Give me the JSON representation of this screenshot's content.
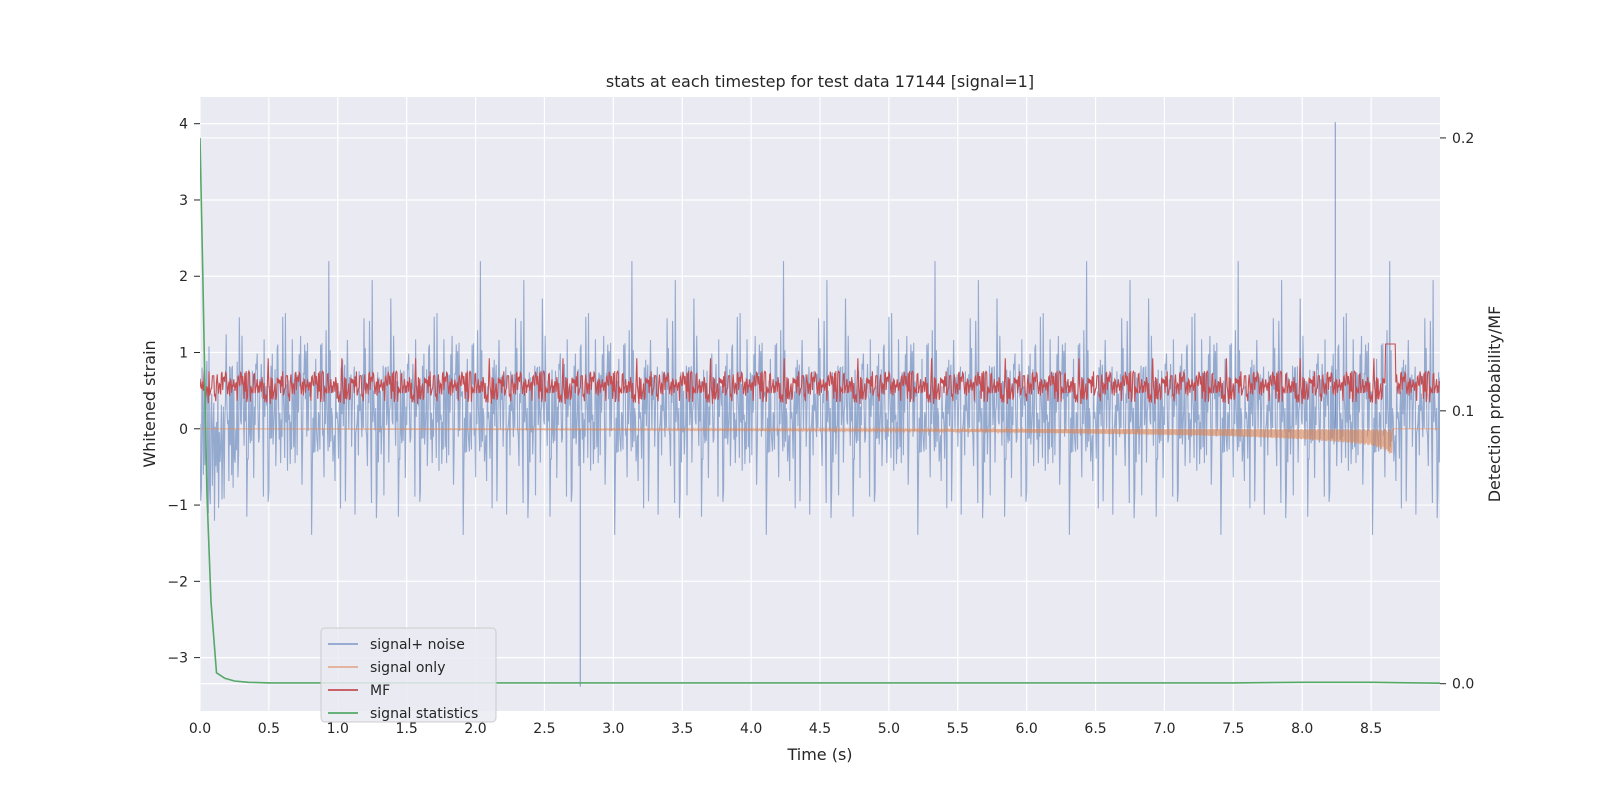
{
  "chart_data": {
    "type": "line",
    "title": "stats at each timestep for test data 17144 [signal=1]",
    "xlabel": "Time (s)",
    "ylabel": "Whitened strain",
    "ylabel_right": "Detection probability/MF",
    "xlim": [
      0,
      9.0
    ],
    "ylim": [
      -3.7,
      4.35
    ],
    "ylim_right": [
      -0.01,
      0.215
    ],
    "x_ticks": [
      0.0,
      0.5,
      1.0,
      1.5,
      2.0,
      2.5,
      3.0,
      3.5,
      4.0,
      4.5,
      5.0,
      5.5,
      6.0,
      6.5,
      7.0,
      7.5,
      8.0,
      8.5
    ],
    "x_tick_labels": [
      "0.0",
      "0.5",
      "1.0",
      "1.5",
      "2.0",
      "2.5",
      "3.0",
      "3.5",
      "4.0",
      "4.5",
      "5.0",
      "5.5",
      "6.0",
      "6.5",
      "7.0",
      "7.5",
      "8.0",
      "8.5"
    ],
    "y_ticks": [
      -3,
      -2,
      -1,
      0,
      1,
      2,
      3,
      4
    ],
    "y_tick_labels": [
      "−3",
      "−2",
      "−1",
      "0",
      "1",
      "2",
      "3",
      "4"
    ],
    "y_right_ticks": [
      0.0,
      0.1,
      0.2
    ],
    "y_right_tick_labels": [
      "0.0",
      "0.1",
      "0.2"
    ],
    "grid": true,
    "legend_position": "lower-left",
    "series": [
      {
        "name": "signal+ noise",
        "color": "#4c72b0",
        "axis": "left",
        "style": "noise band, approx range [-3.4, 4.0]"
      },
      {
        "name": "signal only",
        "color": "#dd8452",
        "axis": "left",
        "style": "chirp growing toward merger near 8.65 s",
        "x": [
          0.0,
          4.0,
          5.0,
          6.0,
          7.0,
          7.5,
          8.0,
          8.3,
          8.5,
          8.6,
          8.65,
          8.66,
          9.0
        ],
        "amplitude": [
          0.0,
          0.02,
          0.03,
          0.05,
          0.08,
          0.1,
          0.14,
          0.18,
          0.22,
          0.28,
          0.35,
          0.0,
          0.0
        ]
      },
      {
        "name": "MF",
        "color": "#c44e52",
        "axis": "right",
        "style": "band approx [0.1, 0.125] with peak 0.125 near 8.65 s"
      },
      {
        "name": "signal statistics",
        "color": "#55a868",
        "axis": "right",
        "x": [
          0.0,
          0.02,
          0.05,
          0.08,
          0.12,
          0.18,
          0.25,
          0.35,
          0.5,
          1.0,
          2.0,
          4.0,
          6.0,
          7.5,
          8.0,
          8.5,
          9.0
        ],
        "y": [
          0.2,
          0.15,
          0.07,
          0.03,
          0.004,
          0.002,
          0.001,
          0.0005,
          0.0003,
          0.0003,
          0.0003,
          0.0003,
          0.0003,
          0.0003,
          0.0005,
          0.0005,
          0.0002
        ]
      }
    ],
    "highlight_points": [
      {
        "series": "signal+ noise",
        "x": 8.24,
        "y": 4.02
      },
      {
        "series": "signal+ noise",
        "x": 2.76,
        "y": -3.38
      }
    ]
  }
}
